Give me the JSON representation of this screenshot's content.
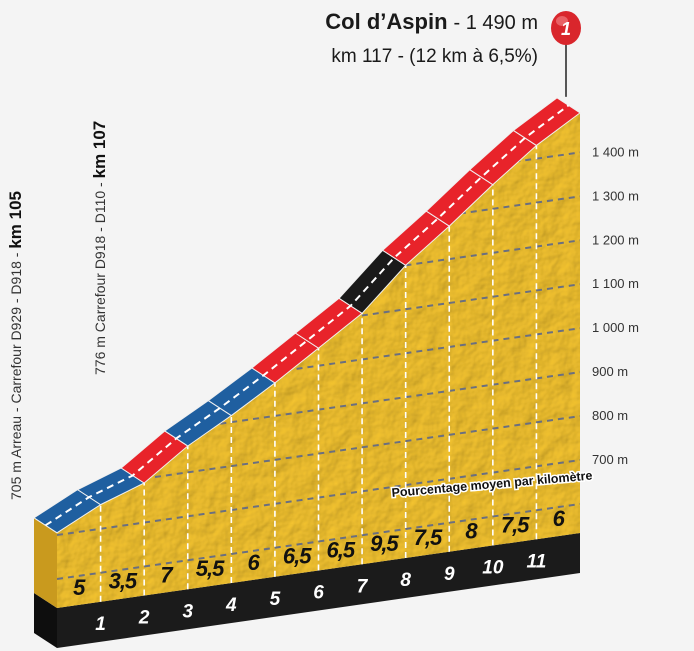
{
  "chart_data": {
    "type": "area",
    "title": "Col d’Aspin",
    "title_suffix": "- 1 490 m",
    "subtitle": "km 117 - (12 km à 6,5%)",
    "summit_marker": "1",
    "start_label": {
      "text": "705 m Arreau - Carrefour D929 - D918 - ",
      "km": "km 105"
    },
    "waypoint_label": {
      "text": "776 m Carrefour D918 - D110 - ",
      "km": "km 107"
    },
    "gradient_caption": "Pourcentage moyen par kilomètre",
    "start_elevation_m": 705,
    "summit_elevation_m": 1490,
    "km_ticks": [
      "1",
      "2",
      "3",
      "4",
      "5",
      "6",
      "7",
      "8",
      "9",
      "10",
      "11"
    ],
    "gradients": [
      5,
      3.5,
      7,
      5.5,
      6,
      6.5,
      6.5,
      9.5,
      7.5,
      8,
      7.5,
      6
    ],
    "gradient_labels": [
      "5",
      "3,5",
      "7",
      "5,5",
      "6",
      "6,5",
      "6,5",
      "9,5",
      "7,5",
      "8",
      "7,5",
      "6"
    ],
    "segment_colors": [
      "#1f5fa0",
      "#1f5fa0",
      "#e8232a",
      "#1f5fa0",
      "#1f5fa0",
      "#e8232a",
      "#e8232a",
      "#1a1a1a",
      "#e8232a",
      "#e8232a",
      "#e8232a",
      "#e8232a"
    ],
    "y_ticks": [
      700,
      800,
      900,
      1000,
      1100,
      1200,
      1300,
      1400
    ],
    "y_tick_labels": [
      "700 m",
      "800 m",
      "900 m",
      "1 000 m",
      "1 100 m",
      "1 200 m",
      "1 300 m",
      "1 400 m"
    ],
    "grid": true,
    "colors": {
      "terrain": "#f2c230",
      "terrain_side": "#c99a1e",
      "base": "#1b1b1b",
      "marker": "#d9262c"
    }
  }
}
